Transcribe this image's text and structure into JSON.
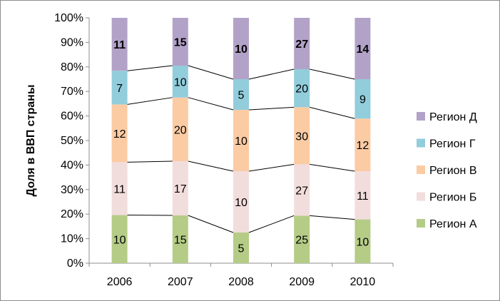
{
  "chart_data": {
    "type": "bar",
    "stacked": "percent",
    "title": "",
    "xlabel": "",
    "ylabel": "Доля в ВВП страны",
    "categories": [
      "2006",
      "2007",
      "2008",
      "2009",
      "2010"
    ],
    "ylim": [
      0,
      100
    ],
    "yticks": [
      "0%",
      "10%",
      "20%",
      "30%",
      "40%",
      "50%",
      "60%",
      "70%",
      "80%",
      "90%",
      "100%"
    ],
    "grid": false,
    "series_lines": true,
    "legend_position": "right",
    "series": [
      {
        "name": "Регион А",
        "values": [
          10,
          15,
          5,
          25,
          10
        ],
        "color": "#b5cc87",
        "label_bold": false
      },
      {
        "name": "Регион Б",
        "values": [
          11,
          17,
          10,
          27,
          11
        ],
        "color": "#f2dddd",
        "label_bold": false
      },
      {
        "name": "Регион В",
        "values": [
          12,
          20,
          10,
          30,
          12
        ],
        "color": "#fbcba4",
        "label_bold": false
      },
      {
        "name": "Регион Г",
        "values": [
          7,
          10,
          5,
          20,
          9
        ],
        "color": "#92cddc",
        "label_bold": false
      },
      {
        "name": "Регион Д",
        "values": [
          11,
          15,
          10,
          27,
          14
        ],
        "color": "#b3a2c7",
        "label_bold": true
      }
    ],
    "legend_order": [
      "Регион Д",
      "Регион Г",
      "Регион В",
      "Регион Б",
      "Регион А"
    ]
  }
}
